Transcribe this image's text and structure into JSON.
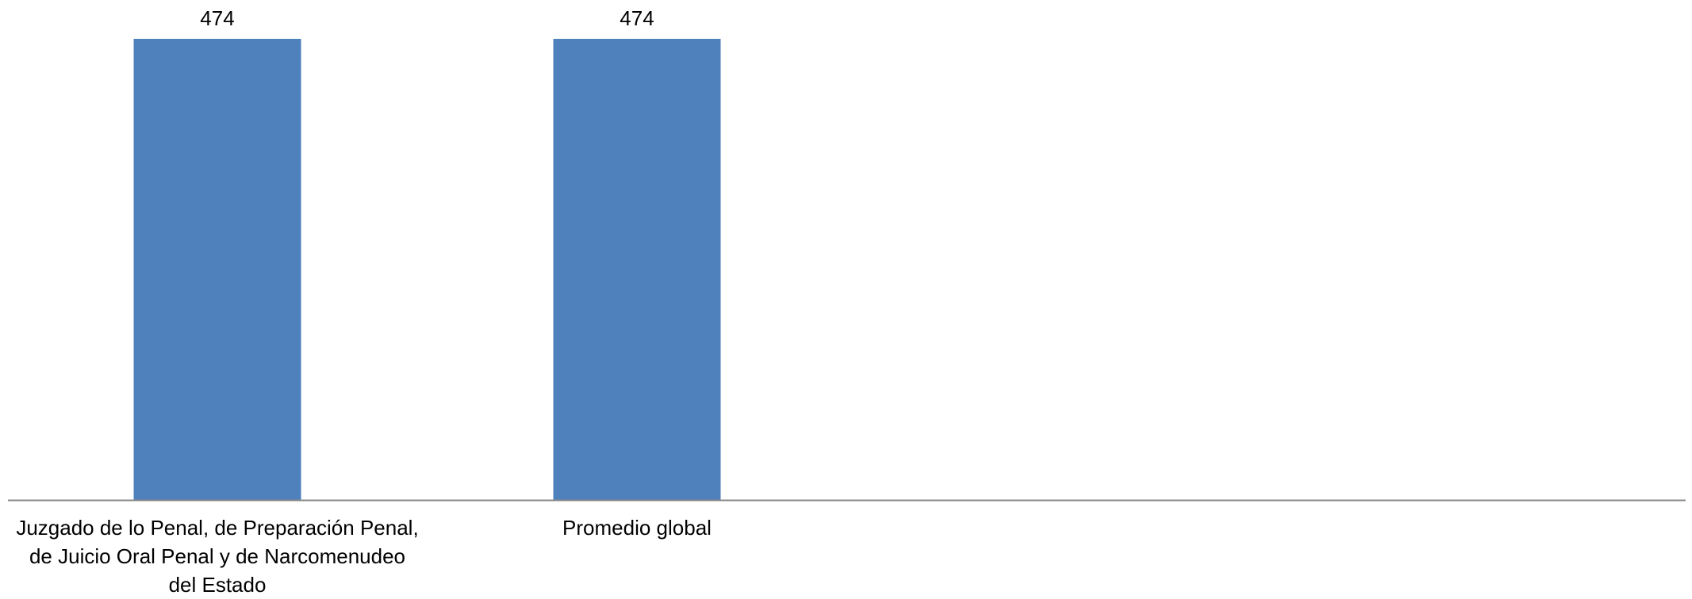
{
  "chart_data": {
    "type": "bar",
    "categories": [
      [
        "Juzgado de lo Penal, de Preparación Penal,",
        "de Juicio Oral Penal  y de Narcomenudeo",
        "del Estado"
      ],
      [
        "Promedio global"
      ]
    ],
    "values": [
      474,
      474
    ],
    "data_labels": [
      "474",
      "474"
    ],
    "ylim": [
      0,
      474
    ],
    "grid": false,
    "legend": "none",
    "colors": {
      "bar": "#4f81bd",
      "axis": "#888888",
      "text": "#000000"
    }
  }
}
